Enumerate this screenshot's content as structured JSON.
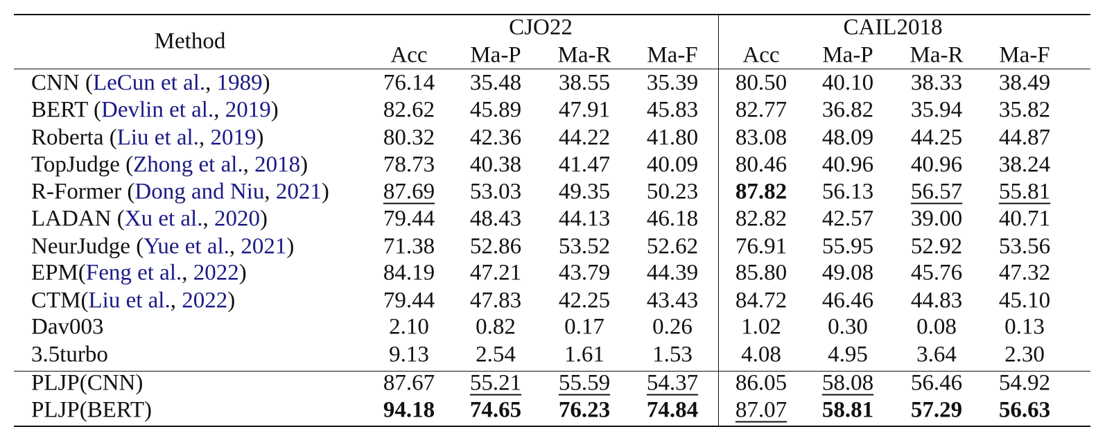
{
  "header": {
    "method": "Method",
    "group_cjo22": "CJO22",
    "group_cail": "CAIL2018",
    "metrics": [
      "Acc",
      "Ma-P",
      "Ma-R",
      "Ma-F",
      "Acc",
      "Ma-P",
      "Ma-R",
      "Ma-F"
    ]
  },
  "rows": [
    {
      "name": "CNN",
      "sep": " (",
      "cite_a": "LeCun et al.",
      "comma": ", ",
      "cite_y": "1989",
      "close": ")",
      "values": [
        "76.14",
        "35.48",
        "38.55",
        "35.39",
        "80.50",
        "40.10",
        "38.33",
        "38.49"
      ]
    },
    {
      "name": "BERT",
      "sep": " (",
      "cite_a": "Devlin et al.",
      "comma": ", ",
      "cite_y": "2019",
      "close": ")",
      "values": [
        "82.62",
        "45.89",
        "47.91",
        "45.83",
        "82.77",
        "36.82",
        "35.94",
        "35.82"
      ]
    },
    {
      "name": "Roberta",
      "sep": " (",
      "cite_a": "Liu et al.",
      "comma": ", ",
      "cite_y": "2019",
      "close": ")",
      "values": [
        "80.32",
        "42.36",
        "44.22",
        "41.80",
        "83.08",
        "48.09",
        "44.25",
        "44.87"
      ]
    },
    {
      "name": "TopJudge",
      "sep": " (",
      "cite_a": "Zhong et al.",
      "comma": ", ",
      "cite_y": "2018",
      "close": ")",
      "values": [
        "78.73",
        "40.38",
        "41.47",
        "40.09",
        "80.46",
        "40.96",
        "40.96",
        "38.24"
      ]
    },
    {
      "name": "R-Former",
      "sep": " (",
      "cite_a": "Dong and Niu",
      "comma": ", ",
      "cite_y": "2021",
      "close": ")",
      "values": [
        "87.69",
        "53.03",
        "49.35",
        "50.23",
        "87.82",
        "56.13",
        "56.57",
        "55.81"
      ]
    },
    {
      "name": "LADAN",
      "sep": " (",
      "cite_a": "Xu et al.",
      "comma": ", ",
      "cite_y": "2020",
      "close": ")",
      "values": [
        "79.44",
        "48.43",
        "44.13",
        "46.18",
        "82.82",
        "42.57",
        "39.00",
        "40.71"
      ]
    },
    {
      "name": "NeurJudge",
      "sep": " (",
      "cite_a": "Yue et al.",
      "comma": ", ",
      "cite_y": "2021",
      "close": ")",
      "values": [
        "71.38",
        "52.86",
        "53.52",
        "52.62",
        "76.91",
        "55.95",
        "52.92",
        "53.56"
      ]
    },
    {
      "name": "EPM",
      "sep": "(",
      "cite_a": "Feng et al.",
      "comma": ", ",
      "cite_y": "2022",
      "close": ")",
      "values": [
        "84.19",
        "47.21",
        "43.79",
        "44.39",
        "85.80",
        "49.08",
        "45.76",
        "47.32"
      ]
    },
    {
      "name": "CTM",
      "sep": "(",
      "cite_a": "Liu et al.",
      "comma": ", ",
      "cite_y": "2022",
      "close": ")",
      "values": [
        "79.44",
        "47.83",
        "42.25",
        "43.43",
        "84.72",
        "46.46",
        "44.83",
        "45.10"
      ]
    },
    {
      "name": "Dav003",
      "values": [
        "2.10",
        "0.82",
        "0.17",
        "0.26",
        "1.02",
        "0.30",
        "0.08",
        "0.13"
      ]
    },
    {
      "name": "3.5turbo",
      "values": [
        "9.13",
        "2.54",
        "1.61",
        "1.53",
        "4.08",
        "4.95",
        "3.64",
        "2.30"
      ]
    },
    {
      "name": "PLJP(CNN)",
      "values": [
        "87.67",
        "55.21",
        "55.59",
        "54.37",
        "86.05",
        "58.08",
        "56.46",
        "54.92"
      ]
    },
    {
      "name": "PLJP(BERT)",
      "values": [
        "94.18",
        "74.65",
        "76.23",
        "74.84",
        "87.07",
        "58.81",
        "57.29",
        "56.63"
      ]
    }
  ],
  "bold_cells": [
    [
      4,
      4
    ],
    [
      12,
      0
    ],
    [
      12,
      1
    ],
    [
      12,
      2
    ],
    [
      12,
      3
    ],
    [
      12,
      5
    ],
    [
      12,
      6
    ],
    [
      12,
      7
    ]
  ],
  "underlined_cells": [
    [
      4,
      0
    ],
    [
      4,
      6
    ],
    [
      4,
      7
    ],
    [
      11,
      1
    ],
    [
      11,
      2
    ],
    [
      11,
      3
    ],
    [
      11,
      5
    ],
    [
      12,
      4
    ]
  ],
  "colors": {
    "citation": "#1a1a86",
    "text": "#111111"
  }
}
